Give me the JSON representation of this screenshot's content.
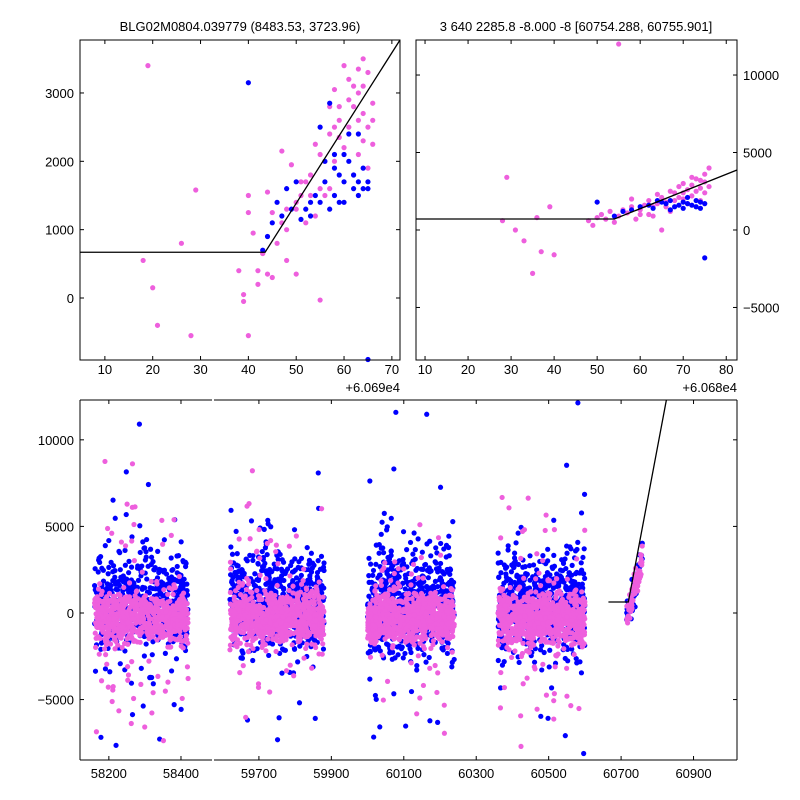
{
  "colors": {
    "pink": "#ee5fdd",
    "blue": "#0000ff",
    "line": "#000000"
  },
  "chart_data": [
    {
      "id": "top-left",
      "type": "scatter",
      "title": "BLG02M0804.039779 (8483.53, 3723.96)",
      "x_offset_label": "+6.069e4",
      "xlim": [
        4.8,
        71.7
      ],
      "ylim": [
        -907,
        3775
      ],
      "xticks": [
        10,
        20,
        30,
        40,
        50,
        60,
        70
      ],
      "xtick_labels": [
        "10",
        "20",
        "30",
        "40",
        "50",
        "60",
        "70"
      ],
      "yticks": [
        0,
        1000,
        2000,
        3000
      ],
      "ytick_labels": [
        "0",
        "1000",
        "2000",
        "3000"
      ],
      "ytick_side": "left",
      "fit_line": [
        [
          4.8,
          670
        ],
        [
          43.5,
          670
        ],
        [
          71.7,
          3775
        ]
      ],
      "series": [
        {
          "name": "pink",
          "points": [
            [
              18,
              550
            ],
            [
              19,
              3400
            ],
            [
              20,
              150
            ],
            [
              21,
              -400
            ],
            [
              26,
              800
            ],
            [
              28,
              -550
            ],
            [
              29,
              1580
            ],
            [
              38,
              400
            ],
            [
              39,
              -50
            ],
            [
              39,
              50
            ],
            [
              40,
              -550
            ],
            [
              40,
              1250
            ],
            [
              40,
              1500
            ],
            [
              41,
              950
            ],
            [
              42,
              400
            ],
            [
              42,
              200
            ],
            [
              43,
              650
            ],
            [
              44,
              1550
            ],
            [
              44,
              350
            ],
            [
              45,
              300
            ],
            [
              45,
              1250
            ],
            [
              46,
              800
            ],
            [
              47,
              2150
            ],
            [
              48,
              550
            ],
            [
              48,
              1000
            ],
            [
              49,
              1950
            ],
            [
              50,
              350
            ],
            [
              50,
              1300
            ],
            [
              51,
              1500
            ],
            [
              52,
              1100
            ],
            [
              53,
              1800
            ],
            [
              54,
              2250
            ],
            [
              55,
              1600
            ],
            [
              55,
              -30
            ],
            [
              56,
              2000
            ],
            [
              57,
              2400
            ],
            [
              57,
              2800
            ],
            [
              58,
              3050
            ],
            [
              58,
              2000
            ],
            [
              59,
              2600
            ],
            [
              59,
              2350
            ],
            [
              60,
              3400
            ],
            [
              61,
              2500
            ],
            [
              61,
              2900
            ],
            [
              62,
              2800
            ],
            [
              63,
              3000
            ],
            [
              63,
              3350
            ],
            [
              64,
              3500
            ],
            [
              64,
              2700
            ],
            [
              65,
              3300
            ],
            [
              65,
              2500
            ],
            [
              66,
              2600
            ],
            [
              63,
              2100
            ],
            [
              62,
              1800
            ],
            [
              60,
              2200
            ],
            [
              56,
              1500
            ],
            [
              54,
              1200
            ],
            [
              52,
              1700
            ],
            [
              50,
              1400
            ],
            [
              48,
              1300
            ],
            [
              65,
              1900
            ],
            [
              64,
              2300
            ],
            [
              66,
              2250
            ],
            [
              62,
              3100
            ],
            [
              59,
              2800
            ],
            [
              57,
              1600
            ],
            [
              61,
              3200
            ],
            [
              64,
              3100
            ],
            [
              66,
              2850
            ],
            [
              63,
              2600
            ],
            [
              58,
              2500
            ],
            [
              55,
              2100
            ],
            [
              53,
              1500
            ],
            [
              51,
              1700
            ],
            [
              47,
              1100
            ]
          ]
        },
        {
          "name": "blue",
          "points": [
            [
              40,
              3150
            ],
            [
              43,
              700
            ],
            [
              44,
              900
            ],
            [
              45,
              1100
            ],
            [
              46,
              1400
            ],
            [
              47,
              1200
            ],
            [
              48,
              1600
            ],
            [
              49,
              1300
            ],
            [
              50,
              1700
            ],
            [
              51,
              1150
            ],
            [
              52,
              1300
            ],
            [
              53,
              1200
            ],
            [
              54,
              1500
            ],
            [
              55,
              2500
            ],
            [
              55,
              1400
            ],
            [
              56,
              1700
            ],
            [
              57,
              2850
            ],
            [
              58,
              1900
            ],
            [
              58,
              1500
            ],
            [
              59,
              1400
            ],
            [
              60,
              2100
            ],
            [
              60,
              1400
            ],
            [
              61,
              2400
            ],
            [
              62,
              1600
            ],
            [
              62,
              1800
            ],
            [
              63,
              1700
            ],
            [
              63,
              1500
            ],
            [
              64,
              1600
            ],
            [
              64,
              1900
            ],
            [
              65,
              1700
            ],
            [
              65,
              -900
            ],
            [
              60,
              1700
            ],
            [
              58,
              2100
            ],
            [
              56,
              2000
            ],
            [
              53,
              1400
            ],
            [
              61,
              2000
            ],
            [
              63,
              2400
            ],
            [
              65,
              1600
            ],
            [
              59,
              1800
            ],
            [
              57,
              1300
            ]
          ]
        }
      ]
    },
    {
      "id": "top-right",
      "type": "scatter",
      "title": "3 640 2285.8 -8.000 -8 [60754.288, 60755.901]",
      "x_offset_label": "+6.068e4",
      "xlim": [
        7.9,
        82.5
      ],
      "ylim": [
        -8390,
        12260
      ],
      "xticks": [
        10,
        20,
        30,
        40,
        50,
        60,
        70,
        80
      ],
      "xtick_labels": [
        "10",
        "20",
        "30",
        "40",
        "50",
        "60",
        "70",
        "80"
      ],
      "yticks": [
        -5000,
        0,
        5000,
        10000
      ],
      "ytick_labels": [
        "−5000",
        "0",
        "5000",
        "10000"
      ],
      "ytick_side": "right",
      "fit_line": [
        [
          7.9,
          710
        ],
        [
          54,
          710
        ],
        [
          82.5,
          3870
        ]
      ],
      "series": [
        {
          "name": "pink",
          "points": [
            [
              29,
              3400
            ],
            [
              28,
              600
            ],
            [
              31,
              0
            ],
            [
              33,
              -700
            ],
            [
              36,
              800
            ],
            [
              37,
              -1400
            ],
            [
              35,
              -2800
            ],
            [
              39,
              1500
            ],
            [
              40,
              -1600
            ],
            [
              55,
              12000
            ],
            [
              48,
              600
            ],
            [
              49,
              300
            ],
            [
              50,
              800
            ],
            [
              51,
              1000
            ],
            [
              52,
              700
            ],
            [
              53,
              1200
            ],
            [
              54,
              500
            ],
            [
              55,
              900
            ],
            [
              56,
              1300
            ],
            [
              57,
              1100
            ],
            [
              58,
              2000
            ],
            [
              58,
              1500
            ],
            [
              59,
              700
            ],
            [
              60,
              1300
            ],
            [
              61,
              1600
            ],
            [
              62,
              1900
            ],
            [
              62,
              1000
            ],
            [
              63,
              1500
            ],
            [
              64,
              2300
            ],
            [
              64,
              1700
            ],
            [
              65,
              0
            ],
            [
              65,
              2100
            ],
            [
              66,
              1800
            ],
            [
              67,
              2500
            ],
            [
              67,
              1200
            ],
            [
              68,
              2400
            ],
            [
              68,
              1900
            ],
            [
              69,
              2800
            ],
            [
              69,
              2100
            ],
            [
              70,
              2000
            ],
            [
              70,
              3000
            ],
            [
              71,
              2600
            ],
            [
              71,
              1700
            ],
            [
              72,
              2900
            ],
            [
              72,
              2200
            ],
            [
              73,
              3300
            ],
            [
              73,
              2500
            ],
            [
              74,
              2700
            ],
            [
              74,
              1900
            ],
            [
              75,
              3600
            ],
            [
              75,
              3100
            ],
            [
              75,
              2400
            ],
            [
              76,
              4000
            ],
            [
              76,
              2800
            ],
            [
              60,
              1000
            ],
            [
              63,
              900
            ],
            [
              66,
              1500
            ],
            [
              70,
              2400
            ],
            [
              72,
              3400
            ],
            [
              74,
              3200
            ]
          ]
        },
        {
          "name": "blue",
          "points": [
            [
              50,
              1800
            ],
            [
              54,
              900
            ],
            [
              56,
              1200
            ],
            [
              58,
              1300
            ],
            [
              60,
              1500
            ],
            [
              62,
              1600
            ],
            [
              63,
              1400
            ],
            [
              65,
              1800
            ],
            [
              66,
              1700
            ],
            [
              67,
              1900
            ],
            [
              68,
              1500
            ],
            [
              69,
              1600
            ],
            [
              70,
              1800
            ],
            [
              70,
              1400
            ],
            [
              71,
              1700
            ],
            [
              72,
              1600
            ],
            [
              73,
              1900
            ],
            [
              73,
              1500
            ],
            [
              74,
              1800
            ],
            [
              74,
              1400
            ],
            [
              75,
              1700
            ],
            [
              75,
              -1800
            ],
            [
              64,
              1900
            ],
            [
              67,
              1300
            ],
            [
              71,
              2100
            ]
          ]
        }
      ]
    },
    {
      "id": "bottom",
      "type": "scatter",
      "broken_xaxis": true,
      "xlim_segments": [
        [
          58120,
          58486
        ],
        [
          59576,
          61020
        ]
      ],
      "ylim": [
        -8490,
        12300
      ],
      "xticks": [
        58200,
        58400,
        59700,
        59900,
        60100,
        60300,
        60500,
        60700,
        60900
      ],
      "xtick_labels": [
        "58200",
        "58400",
        "59700",
        "59900",
        "60100",
        "60300",
        "60500",
        "60700",
        "60900"
      ],
      "yticks": [
        -5000,
        0,
        5000,
        10000
      ],
      "ytick_labels": [
        "−5000",
        "0",
        "5000",
        "10000"
      ],
      "ytick_side": "left",
      "fit_line": [
        [
          60665,
          636
        ],
        [
          60720,
          636
        ],
        [
          60825,
          12300
        ]
      ],
      "seasons": [
        {
          "x_range": [
            58160,
            58420
          ],
          "n": 700
        },
        {
          "x_range": [
            59620,
            59880
          ],
          "n": 800
        },
        {
          "x_range": [
            60000,
            60240
          ],
          "n": 800
        },
        {
          "x_range": [
            60360,
            60600
          ],
          "n": 800
        },
        {
          "x_range": [
            60715,
            60760
          ],
          "n": 60
        }
      ],
      "series": [
        {
          "name": "pink",
          "center": -300,
          "spread": 750
        },
        {
          "name": "blue",
          "center": 600,
          "spread": 1400
        }
      ]
    }
  ]
}
